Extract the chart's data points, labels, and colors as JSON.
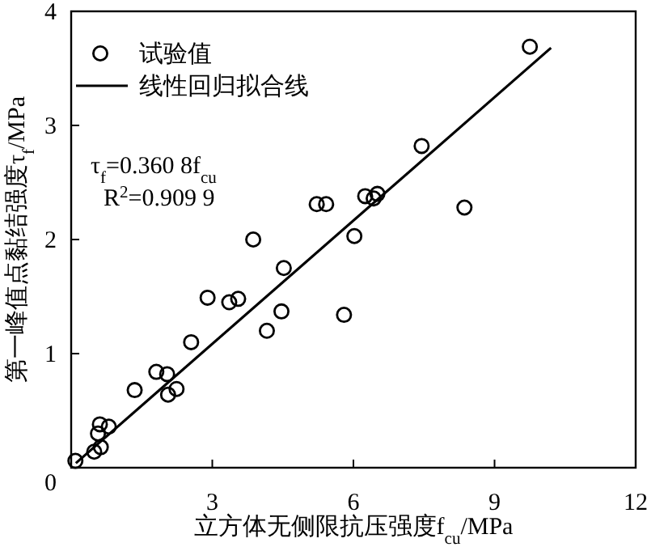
{
  "chart_data": {
    "type": "scatter",
    "xlabel": "立方体无侧限抗压强度f$_{cu}$/MPa",
    "ylabel": "第一峰值点黏结强度τ$_{f}$/MPa",
    "xlim": [
      0,
      12
    ],
    "ylim": [
      0,
      4
    ],
    "xticks": [
      {
        "value": 0,
        "label": null
      },
      3,
      6,
      9,
      12
    ],
    "yticks": [
      0,
      1,
      2,
      3,
      4
    ],
    "grid": false,
    "legend": "top left",
    "annotations": [
      "τ$_{f}$=0.360 8f$_{cu}$",
      "R$^{2}$=0.909 9"
    ],
    "series": [
      {
        "name": "试验值",
        "type": "scatter",
        "marker": "circle",
        "color": "#000000",
        "x": [
          0.09,
          0.49,
          0.63,
          0.57,
          0.61,
          0.8,
          1.35,
          1.81,
          2.04,
          2.06,
          2.24,
          2.55,
          2.9,
          3.36,
          3.55,
          3.87,
          4.16,
          4.47,
          4.52,
          5.22,
          5.42,
          5.8,
          6.02,
          6.25,
          6.43,
          6.51,
          7.45,
          8.36,
          9.75
        ],
        "values": [
          0.06,
          0.14,
          0.18,
          0.3,
          0.38,
          0.36,
          0.68,
          0.84,
          0.82,
          0.64,
          0.69,
          1.1,
          1.49,
          1.45,
          1.48,
          2.0,
          1.2,
          1.37,
          1.75,
          2.31,
          2.31,
          1.34,
          2.03,
          2.38,
          2.36,
          2.4,
          2.82,
          2.28,
          3.69
        ]
      },
      {
        "name": "线性回归拟合线",
        "type": "line",
        "marker": "none",
        "line_style": "solid",
        "color": "#000000",
        "x": [
          0.1,
          10.2
        ],
        "values": [
          0.04,
          3.68
        ]
      }
    ]
  }
}
